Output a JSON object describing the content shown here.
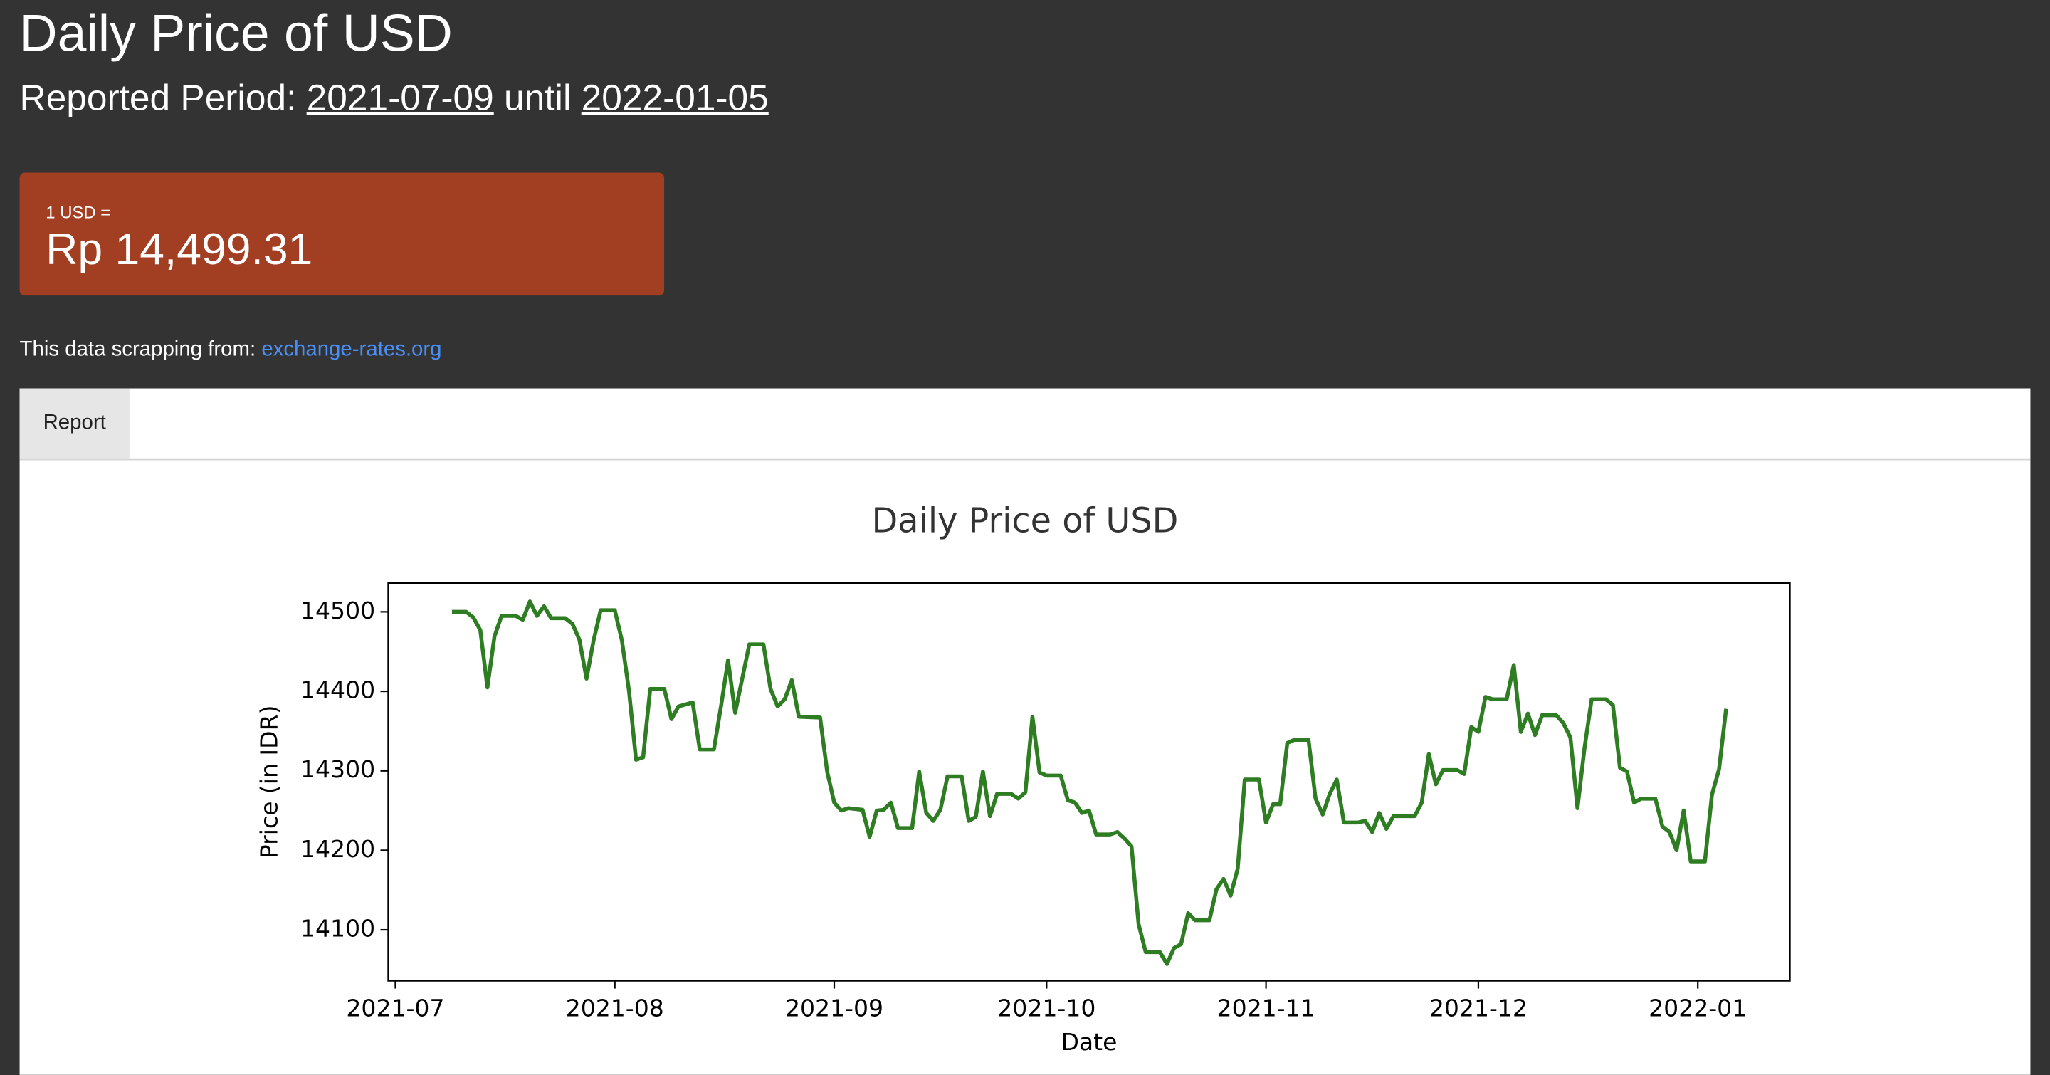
{
  "header": {
    "title": "Daily Price of USD",
    "period_label": "Reported Period:",
    "start": "2021-07-09",
    "connector": "until",
    "end": "2022-01-05"
  },
  "card": {
    "label": "1 USD =",
    "value": "Rp 14,499.31"
  },
  "source": {
    "text": "This data scrapping from:",
    "link": "exchange-rates.org"
  },
  "tabs": [
    "Report"
  ],
  "chart_data": {
    "type": "line",
    "title": "Daily Price of USD",
    "x_label": "Date",
    "y_label": "Price (in IDR)",
    "color": "#2e7d22",
    "grid": false,
    "x": [
      "2021-07-09",
      "2021-07-11",
      "2021-07-12",
      "2021-07-13",
      "2021-07-14",
      "2021-07-15",
      "2021-07-16",
      "2021-07-18",
      "2021-07-19",
      "2021-07-20",
      "2021-07-21",
      "2021-07-22",
      "2021-07-23",
      "2021-07-25",
      "2021-07-26",
      "2021-07-27",
      "2021-07-28",
      "2021-07-29",
      "2021-07-30",
      "2021-08-01",
      "2021-08-02",
      "2021-08-03",
      "2021-08-04",
      "2021-08-05",
      "2021-08-06",
      "2021-08-08",
      "2021-08-09",
      "2021-08-10",
      "2021-08-12",
      "2021-08-13",
      "2021-08-15",
      "2021-08-16",
      "2021-08-17",
      "2021-08-18",
      "2021-08-20",
      "2021-08-22",
      "2021-08-23",
      "2021-08-24",
      "2021-08-25",
      "2021-08-26",
      "2021-08-27",
      "2021-08-30",
      "2021-08-31",
      "2021-09-01",
      "2021-09-02",
      "2021-09-03",
      "2021-09-05",
      "2021-09-06",
      "2021-09-07",
      "2021-09-08",
      "2021-09-09",
      "2021-09-10",
      "2021-09-12",
      "2021-09-13",
      "2021-09-14",
      "2021-09-15",
      "2021-09-16",
      "2021-09-17",
      "2021-09-19",
      "2021-09-20",
      "2021-09-21",
      "2021-09-22",
      "2021-09-23",
      "2021-09-24",
      "2021-09-26",
      "2021-09-27",
      "2021-09-28",
      "2021-09-29",
      "2021-09-30",
      "2021-10-01",
      "2021-10-03",
      "2021-10-04",
      "2021-10-05",
      "2021-10-06",
      "2021-10-07",
      "2021-10-08",
      "2021-10-10",
      "2021-10-11",
      "2021-10-12",
      "2021-10-13",
      "2021-10-14",
      "2021-10-15",
      "2021-10-17",
      "2021-10-18",
      "2021-10-19",
      "2021-10-20",
      "2021-10-21",
      "2021-10-22",
      "2021-10-24",
      "2021-10-25",
      "2021-10-26",
      "2021-10-27",
      "2021-10-28",
      "2021-10-29",
      "2021-10-31",
      "2021-11-01",
      "2021-11-02",
      "2021-11-03",
      "2021-11-04",
      "2021-11-05",
      "2021-11-07",
      "2021-11-08",
      "2021-11-09",
      "2021-11-10",
      "2021-11-11",
      "2021-11-12",
      "2021-11-14",
      "2021-11-15",
      "2021-11-16",
      "2021-11-17",
      "2021-11-18",
      "2021-11-19",
      "2021-11-22",
      "2021-11-23",
      "2021-11-24",
      "2021-11-25",
      "2021-11-26",
      "2021-11-28",
      "2021-11-29",
      "2021-11-30",
      "2021-12-01",
      "2021-12-02",
      "2021-12-03",
      "2021-12-05",
      "2021-12-06",
      "2021-12-07",
      "2021-12-08",
      "2021-12-09",
      "2021-12-10",
      "2021-12-12",
      "2021-12-13",
      "2021-12-14",
      "2021-12-15",
      "2021-12-16",
      "2021-12-17",
      "2021-12-19",
      "2021-12-20",
      "2021-12-21",
      "2021-12-22",
      "2021-12-23",
      "2021-12-24",
      "2021-12-26",
      "2021-12-27",
      "2021-12-28",
      "2021-12-29",
      "2021-12-30",
      "2021-12-31",
      "2022-01-02",
      "2022-01-03",
      "2022-01-04",
      "2022-01-05"
    ],
    "values": [
      14500,
      14500,
      14493,
      14477,
      14405,
      14469,
      14495,
      14495,
      14490,
      14513,
      14495,
      14507,
      14492,
      14492,
      14485,
      14465,
      14416,
      14464,
      14502,
      14502,
      14464,
      14401,
      14314,
      14317,
      14403,
      14403,
      14365,
      14381,
      14386,
      14327,
      14327,
      14381,
      14439,
      14373,
      14459,
      14459,
      14403,
      14381,
      14390,
      14414,
      14368,
      14367,
      14299,
      14260,
      14250,
      14253,
      14251,
      14217,
      14250,
      14251,
      14260,
      14228,
      14228,
      14299,
      14247,
      14237,
      14251,
      14293,
      14293,
      14237,
      14242,
      14299,
      14243,
      14271,
      14271,
      14265,
      14273,
      14368,
      14298,
      14294,
      14294,
      14263,
      14260,
      14247,
      14250,
      14220,
      14220,
      14223,
      14215,
      14205,
      14107,
      14072,
      14072,
      14057,
      14077,
      14082,
      14121,
      14112,
      14112,
      14151,
      14164,
      14143,
      14177,
      14289,
      14289,
      14235,
      14258,
      14258,
      14335,
      14339,
      14339,
      14265,
      14245,
      14271,
      14289,
      14235,
      14235,
      14237,
      14223,
      14247,
      14227,
      14243,
      14243,
      14260,
      14321,
      14283,
      14301,
      14301,
      14296,
      14355,
      14349,
      14393,
      14390,
      14390,
      14433,
      14349,
      14372,
      14345,
      14370,
      14370,
      14360,
      14342,
      14253,
      14329,
      14390,
      14390,
      14383,
      14304,
      14299,
      14260,
      14265,
      14265,
      14230,
      14223,
      14200,
      14250,
      14186,
      14186,
      14270,
      14302,
      14378
    ],
    "xlim": [
      "2021-06-30",
      "2022-01-14"
    ],
    "xticks": [
      {
        "value": "2021-07-01",
        "label": "2021-07"
      },
      {
        "value": "2021-08-01",
        "label": "2021-08"
      },
      {
        "value": "2021-09-01",
        "label": "2021-09"
      },
      {
        "value": "2021-10-01",
        "label": "2021-10"
      },
      {
        "value": "2021-11-01",
        "label": "2021-11"
      },
      {
        "value": "2021-12-01",
        "label": "2021-12"
      },
      {
        "value": "2022-01-01",
        "label": "2022-01"
      }
    ],
    "ylim": [
      14036,
      14536
    ],
    "yticks": [
      14100,
      14200,
      14300,
      14400,
      14500
    ]
  }
}
